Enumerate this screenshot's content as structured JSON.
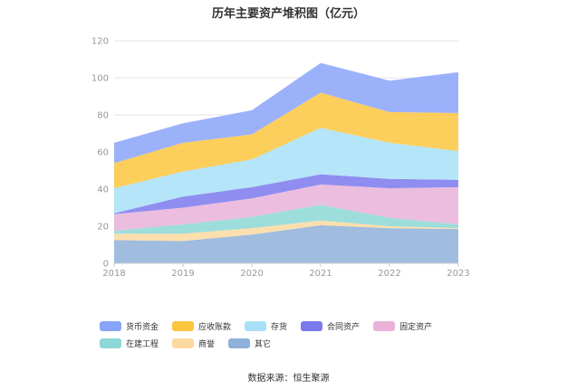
{
  "title": "历年主要资产堆积图（亿元）",
  "source": "数据来源：恒生聚源",
  "chart_data": {
    "type": "area",
    "stacked": true,
    "title": "历年主要资产堆积图（亿元）",
    "x": [
      "2018",
      "2019",
      "2020",
      "2021",
      "2022",
      "2023"
    ],
    "ylim": [
      0,
      120
    ],
    "yticks": [
      0,
      20,
      40,
      60,
      80,
      100,
      120
    ],
    "grid": true,
    "legend_position": "bottom-left",
    "series": [
      {
        "name": "其它",
        "color": "#8fb0d9",
        "values": [
          12.5,
          12.0,
          15.5,
          20.5,
          19.0,
          18.5
        ]
      },
      {
        "name": "商誉",
        "color": "#fcd9a0",
        "values": [
          3.5,
          4.0,
          3.5,
          2.5,
          1.0,
          0.5
        ]
      },
      {
        "name": "在建工程",
        "color": "#8cd8d6",
        "values": [
          1.5,
          5.0,
          6.0,
          8.5,
          4.5,
          2.0
        ]
      },
      {
        "name": "固定资产",
        "color": "#e8b2d9",
        "values": [
          9.0,
          9.0,
          10.0,
          11.0,
          16.0,
          20.0
        ]
      },
      {
        "name": "合同资产",
        "color": "#7b79ec",
        "values": [
          0.5,
          6.0,
          6.0,
          5.5,
          5.0,
          4.0
        ]
      },
      {
        "name": "存货",
        "color": "#a8e0f8",
        "values": [
          13.5,
          13.5,
          15.0,
          25.0,
          19.5,
          15.5
        ]
      },
      {
        "name": "应收账款",
        "color": "#fbc540",
        "values": [
          13.5,
          15.5,
          13.5,
          19.0,
          16.5,
          20.5
        ]
      },
      {
        "name": "货币资金",
        "color": "#89a5fa",
        "values": [
          11.0,
          10.5,
          13.0,
          16.0,
          17.0,
          22.0
        ]
      }
    ]
  },
  "legend_order": [
    "货币资金",
    "应收账款",
    "存货",
    "合同资产",
    "固定资产",
    "在建工程",
    "商誉",
    "其它"
  ]
}
